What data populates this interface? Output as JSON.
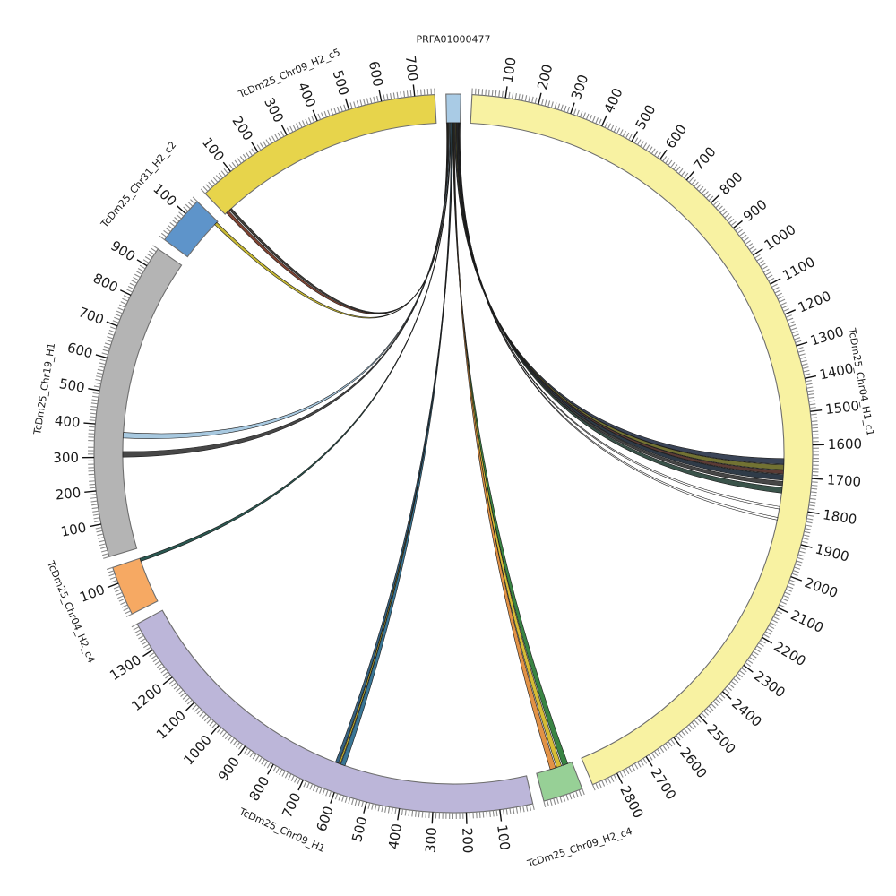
{
  "chart_data": {
    "type": "circos",
    "title": "",
    "geometry": {
      "center": [
        506,
        506
      ],
      "outer_radius": 401,
      "inner_radius": 369,
      "gap_deg": 1.8,
      "tick_minor_len": 7,
      "tick_major_len": 13,
      "tick_label_radius_offset": 17,
      "name_label_radius": 462,
      "minor_tick_interval": 10,
      "major_tick_interval": 100
    },
    "style": {
      "background": "#ffffff",
      "band_stroke": "#6e6e6e",
      "minor_tick_color": "#8a8a8a",
      "major_tick_color": "#111111",
      "tick_label_color": "#1a1a1a",
      "name_label_color": "#1a1a1a",
      "ribbon_stroke": "#1c1c1c"
    },
    "segments": [
      {
        "name": "PRFA01000477",
        "length": 44,
        "color": "#a9cbe5",
        "ticks": false,
        "major_tick_labels": []
      },
      {
        "name": "TcDm25_Chr04_H1_c1",
        "length": 2880,
        "color": "#f8f2a2",
        "ticks": true,
        "major_tick_labels": [
          100,
          200,
          300,
          400,
          500,
          600,
          700,
          800,
          900,
          1000,
          1100,
          1200,
          1300,
          1400,
          1500,
          1600,
          1700,
          1800,
          1900,
          2000,
          2100,
          2200,
          2300,
          2400,
          2500,
          2600,
          2700,
          2800
        ]
      },
      {
        "name": "TcDm25_Chr09_H2_c4",
        "length": 120,
        "color": "#97d096",
        "ticks": true,
        "major_tick_labels": []
      },
      {
        "name": "TcDm25_Chr09_H1",
        "length": 1390,
        "color": "#bcb6d9",
        "ticks": true,
        "major_tick_labels": [
          100,
          200,
          300,
          400,
          500,
          600,
          700,
          800,
          900,
          1000,
          1100,
          1200,
          1300
        ]
      },
      {
        "name": "TcDm25_Chr04_H2_c4",
        "length": 150,
        "color": "#f6a963",
        "ticks": true,
        "major_tick_labels": [
          100
        ]
      },
      {
        "name": "TcDm25_Chr19_H1",
        "length": 960,
        "color": "#b4b4b4",
        "ticks": true,
        "major_tick_labels": [
          100,
          200,
          300,
          400,
          500,
          600,
          700,
          800,
          900
        ]
      },
      {
        "name": "TcDm25_Chr31_H2_c2",
        "length": 150,
        "color": "#5e94ca",
        "ticks": true,
        "major_tick_labels": [
          100
        ]
      },
      {
        "name": "TcDm25_Chr09_H2_c5",
        "length": 760,
        "color": "#e7d44b",
        "ticks": true,
        "major_tick_labels": [
          100,
          200,
          300,
          400,
          500,
          600,
          700
        ]
      }
    ],
    "links": [
      {
        "source": "PRFA01000477",
        "s": [
          0,
          2
        ],
        "target": "TcDm25_Chr09_H2_c5",
        "t": [
          6,
          16
        ],
        "color": "#7a3a28"
      },
      {
        "source": "PRFA01000477",
        "s": [
          2,
          4
        ],
        "target": "TcDm25_Chr09_H2_c5",
        "t": [
          20,
          28
        ],
        "color": "#35332e"
      },
      {
        "source": "PRFA01000477",
        "s": [
          4,
          6
        ],
        "target": "TcDm25_Chr31_H2_c2",
        "t": [
          136,
          146
        ],
        "color": "#c3b42a"
      },
      {
        "source": "PRFA01000477",
        "s": [
          6,
          9
        ],
        "target": "TcDm25_Chr19_H1",
        "t": [
          300,
          318
        ],
        "color": "#3d3d3d"
      },
      {
        "source": "PRFA01000477",
        "s": [
          9,
          12
        ],
        "target": "TcDm25_Chr19_H1",
        "t": [
          362,
          380
        ],
        "color": "#a3c6de"
      },
      {
        "source": "PRFA01000477",
        "s": [
          12,
          14
        ],
        "target": "TcDm25_Chr04_H2_c4",
        "t": [
          140,
          150
        ],
        "color": "#1f4f48"
      },
      {
        "source": "PRFA01000477",
        "s": [
          14,
          17
        ],
        "target": "TcDm25_Chr09_H1",
        "t": [
          596,
          610
        ],
        "color": "#2e6e8e"
      },
      {
        "source": "PRFA01000477",
        "s": [
          17,
          18
        ],
        "target": "TcDm25_Chr09_H1",
        "t": [
          612,
          617
        ],
        "color": "#c8b41e"
      },
      {
        "source": "PRFA01000477",
        "s": [
          18,
          20
        ],
        "target": "TcDm25_Chr09_H1",
        "t": [
          619,
          629
        ],
        "color": "#2a5a7a"
      },
      {
        "source": "PRFA01000477",
        "s": [
          20,
          22
        ],
        "target": "TcDm25_Chr09_H2_c4",
        "t": [
          14,
          32
        ],
        "color": "#2e7d3a"
      },
      {
        "source": "PRFA01000477",
        "s": [
          22,
          24
        ],
        "target": "TcDm25_Chr09_H2_c4",
        "t": [
          36,
          52
        ],
        "color": "#d4b82a"
      },
      {
        "source": "PRFA01000477",
        "s": [
          24,
          26
        ],
        "target": "TcDm25_Chr09_H2_c4",
        "t": [
          56,
          74
        ],
        "color": "#e08c3c"
      },
      {
        "source": "PRFA01000477",
        "s": [
          26,
          29
        ],
        "target": "TcDm25_Chr04_H1_c1",
        "t": [
          1642,
          1660
        ],
        "color": "#2f3a4e"
      },
      {
        "source": "PRFA01000477",
        "s": [
          29,
          32
        ],
        "target": "TcDm25_Chr04_H1_c1",
        "t": [
          1662,
          1678
        ],
        "color": "#6a6a28"
      },
      {
        "source": "PRFA01000477",
        "s": [
          32,
          34
        ],
        "target": "TcDm25_Chr04_H1_c1",
        "t": [
          1680,
          1692
        ],
        "color": "#52302a"
      },
      {
        "source": "PRFA01000477",
        "s": [
          34,
          37
        ],
        "target": "TcDm25_Chr04_H1_c1",
        "t": [
          1694,
          1712
        ],
        "color": "#24303e"
      },
      {
        "source": "PRFA01000477",
        "s": [
          37,
          39
        ],
        "target": "TcDm25_Chr04_H1_c1",
        "t": [
          1716,
          1730
        ],
        "color": "#3c3c3c"
      },
      {
        "source": "PRFA01000477",
        "s": [
          39,
          41
        ],
        "target": "TcDm25_Chr04_H1_c1",
        "t": [
          1736,
          1754
        ],
        "color": "#2f4a40"
      },
      {
        "source": "PRFA01000477",
        "s": [
          41,
          42.5
        ],
        "target": "TcDm25_Chr04_H1_c1",
        "t": [
          1798,
          1806
        ],
        "color": "#ffffff"
      },
      {
        "source": "PRFA01000477",
        "s": [
          42.5,
          44
        ],
        "target": "TcDm25_Chr04_H1_c1",
        "t": [
          1834,
          1842
        ],
        "color": "#ffffff"
      }
    ]
  }
}
